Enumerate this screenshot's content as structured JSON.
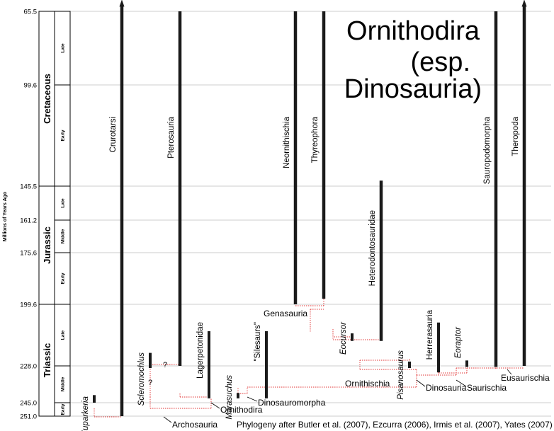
{
  "title": {
    "line1": "Ornithodira",
    "line2": "(esp.",
    "line3": "Dinosauria)"
  },
  "axis": {
    "label": "Millions of Years Ago",
    "ticks": [
      {
        "label": "65.5",
        "ma": 65.5
      },
      {
        "label": "99.6",
        "ma": 99.6
      },
      {
        "label": "145.5",
        "ma": 145.5
      },
      {
        "label": "161.2",
        "ma": 161.2
      },
      {
        "label": "175.6",
        "ma": 175.6
      },
      {
        "label": "199.6",
        "ma": 199.6
      },
      {
        "label": "228.0",
        "ma": 228.0
      },
      {
        "label": "245.0",
        "ma": 245.0
      },
      {
        "label": "251.0",
        "ma": 251.0
      }
    ]
  },
  "periods": [
    {
      "name": "Cretaceous",
      "start_ma": 65.5,
      "end_ma": 145.5,
      "epochs": [
        {
          "name": "Late",
          "start_ma": 65.5,
          "end_ma": 99.6
        },
        {
          "name": "Early",
          "start_ma": 99.6,
          "end_ma": 145.5
        }
      ]
    },
    {
      "name": "Jurassic",
      "start_ma": 145.5,
      "end_ma": 199.6,
      "epochs": [
        {
          "name": "Late",
          "start_ma": 145.5,
          "end_ma": 161.2
        },
        {
          "name": "Middle",
          "start_ma": 161.2,
          "end_ma": 175.6
        },
        {
          "name": "Early",
          "start_ma": 175.6,
          "end_ma": 199.6
        }
      ]
    },
    {
      "name": "Triassic",
      "start_ma": 199.6,
      "end_ma": 251.0,
      "epochs": [
        {
          "name": "Late",
          "start_ma": 199.6,
          "end_ma": 228.0
        },
        {
          "name": "Middle",
          "start_ma": 228.0,
          "end_ma": 245.0
        },
        {
          "name": "Early",
          "start_ma": 245.0,
          "end_ma": 251.0
        }
      ]
    }
  ],
  "taxa": [
    {
      "name": "Euparkeria",
      "italic": true,
      "from_ma": 245.0,
      "to_ma": 241.5
    },
    {
      "name": "Crurotarsi",
      "italic": false,
      "from_ma": 251.0,
      "to_ma": 63.0,
      "extends_to_present": true
    },
    {
      "name": "Scleromochlus",
      "italic": true,
      "from_ma": 229.0,
      "to_ma": 222.0
    },
    {
      "name": "Pterosauria",
      "italic": false,
      "from_ma": 228.0,
      "to_ma": 65.5
    },
    {
      "name": "Lagerpetonidae",
      "italic": false,
      "from_ma": 243.0,
      "to_ma": 212.0
    },
    {
      "name": "Marasuchus",
      "italic": true,
      "from_ma": 243.0,
      "to_ma": 240.5
    },
    {
      "name": "\"Silesaurs\"",
      "italic": false,
      "from_ma": 243.0,
      "to_ma": 212.0
    },
    {
      "name": "Neornithischia",
      "italic": false,
      "from_ma": 199.6,
      "to_ma": 65.5
    },
    {
      "name": "Thyreophora",
      "italic": false,
      "from_ma": 197.0,
      "to_ma": 65.5
    },
    {
      "name": "Eocursor",
      "italic": true,
      "from_ma": 216.5,
      "to_ma": 213.0
    },
    {
      "name": "Heterodontosauridae",
      "italic": false,
      "from_ma": 216.5,
      "to_ma": 143.0
    },
    {
      "name": "Pisanosaurus",
      "italic": true,
      "from_ma": 229.0,
      "to_ma": 226.0
    },
    {
      "name": "Herrerasauria",
      "italic": false,
      "from_ma": 231.0,
      "to_ma": 208.0
    },
    {
      "name": "Eoraptor",
      "italic": true,
      "from_ma": 228.5,
      "to_ma": 225.5
    },
    {
      "name": "Sauropodomorpha",
      "italic": false,
      "from_ma": 228.5,
      "to_ma": 65.5
    },
    {
      "name": "Theropoda",
      "italic": false,
      "from_ma": 228.0,
      "to_ma": 63.0,
      "extends_to_present": true
    }
  ],
  "clades": [
    {
      "name": "Archosauria"
    },
    {
      "name": "Ornithodira"
    },
    {
      "name": "Dinosauromorpha"
    },
    {
      "name": "Ornithischia"
    },
    {
      "name": "Genasauria"
    },
    {
      "name": "Dinosauria"
    },
    {
      "name": "Saurischia"
    },
    {
      "name": "Eusaurischia"
    }
  ],
  "uncertain_marks": [
    "?",
    "?"
  ],
  "caption": "Phylogeny after Butler et al. (2007), Ezcurra (2006), Irmis et al. (2007), Yates (2007)",
  "colors": {
    "range_bar": "#1a1a1a",
    "tree_lines": "#e03030",
    "grid": "#bbbbbb"
  }
}
